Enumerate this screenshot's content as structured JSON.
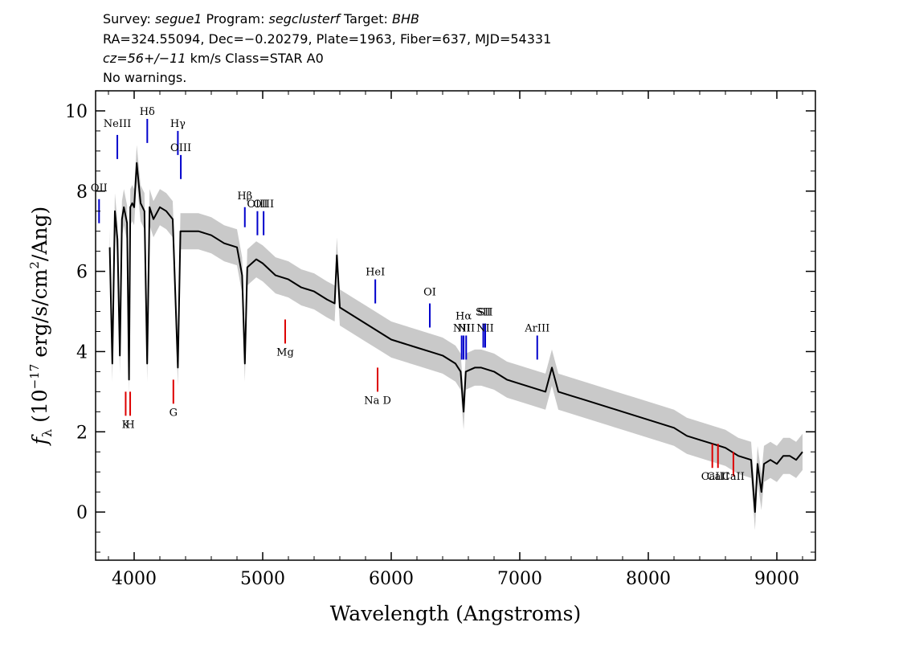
{
  "header": {
    "survey_label": "Survey: ",
    "survey": "segue1",
    "program_label": " Program: ",
    "program": "segclusterf",
    "target_label": " Target: ",
    "target": "BHB",
    "line2": "RA=324.55094, Dec=−0.20279, Plate=1963, Fiber=637, MJD=54331",
    "cz": "cz=56+/−11",
    "line3_rest": " km/s Class=STAR A0",
    "line4": "No warnings."
  },
  "chart_data": {
    "type": "line",
    "xlabel": "Wavelength (Angstroms)",
    "ylabel": "f_λ (10^-17 erg/s/cm^2/Ang)",
    "xlim": [
      3700,
      9300
    ],
    "ylim": [
      -1.2,
      10.5
    ],
    "xticks": [
      4000,
      5000,
      6000,
      7000,
      8000,
      9000
    ],
    "yticks": [
      0,
      2,
      4,
      6,
      8,
      10
    ],
    "colors": {
      "flux": "#000000",
      "error": "#c0c0c0",
      "emission": "#0000cc",
      "absorption": "#dd0000"
    },
    "series": [
      {
        "x": [
          3810,
          3830,
          3850,
          3870,
          3889,
          3905,
          3920,
          3945,
          3960,
          3970,
          3985,
          4000,
          4020,
          4050,
          4080,
          4101,
          4120,
          4150,
          4200,
          4250,
          4300,
          4340,
          4360,
          4400,
          4500,
          4600,
          4700,
          4800,
          4840,
          4861,
          4880,
          4950,
          5000,
          5100,
          5200,
          5300,
          5400,
          5500,
          5560,
          5577,
          5600,
          5700,
          5800,
          5900,
          6000,
          6100,
          6200,
          6300,
          6400,
          6500,
          6540,
          6563,
          6580,
          6650,
          6700,
          6800,
          6900,
          7000,
          7100,
          7200,
          7250,
          7300,
          7400,
          7500,
          7600,
          7700,
          7800,
          7900,
          8000,
          8100,
          8200,
          8300,
          8400,
          8500,
          8600,
          8700,
          8800,
          8830,
          8850,
          8880,
          8900,
          8950,
          9000,
          9050,
          9100,
          9150,
          9200
        ],
        "values": [
          6.6,
          3.7,
          7.5,
          6.8,
          3.9,
          7.3,
          7.6,
          7.2,
          3.3,
          7.6,
          7.7,
          7.6,
          8.7,
          7.7,
          7.5,
          3.7,
          7.6,
          7.3,
          7.6,
          7.5,
          7.3,
          3.6,
          7.0,
          7.0,
          7.0,
          6.9,
          6.7,
          6.6,
          5.9,
          3.7,
          6.1,
          6.3,
          6.2,
          5.9,
          5.8,
          5.6,
          5.5,
          5.3,
          5.2,
          6.4,
          5.1,
          4.9,
          4.7,
          4.5,
          4.3,
          4.2,
          4.1,
          4.0,
          3.9,
          3.7,
          3.5,
          2.5,
          3.5,
          3.6,
          3.6,
          3.5,
          3.3,
          3.2,
          3.1,
          3.0,
          3.6,
          3.0,
          2.9,
          2.8,
          2.7,
          2.6,
          2.5,
          2.4,
          2.3,
          2.2,
          2.1,
          1.9,
          1.8,
          1.7,
          1.6,
          1.4,
          1.3,
          0.0,
          1.2,
          0.5,
          1.2,
          1.3,
          1.2,
          1.4,
          1.4,
          1.3,
          1.5
        ]
      }
    ],
    "spectral_lines": [
      {
        "label": "NeIII",
        "wavelength": 3869,
        "type": "emission",
        "label_flux": 9.6,
        "marker": [
          8.8,
          9.4
        ]
      },
      {
        "label": "Hδ",
        "wavelength": 4102,
        "type": "emission",
        "label_flux": 9.9,
        "marker": [
          9.2,
          9.8
        ]
      },
      {
        "label": "Hγ",
        "wavelength": 4340,
        "type": "emission",
        "label_flux": 9.6,
        "marker": [
          8.9,
          9.5
        ]
      },
      {
        "label": "OIII",
        "wavelength": 4363,
        "type": "emission",
        "label_flux": 9.0,
        "marker": [
          8.3,
          8.9
        ]
      },
      {
        "label": "OII",
        "wavelength": 3727,
        "type": "emission",
        "label_flux": 8.0,
        "marker": [
          7.2,
          7.8
        ]
      },
      {
        "label": "Hβ",
        "wavelength": 4861,
        "type": "emission",
        "label_flux": 7.8,
        "marker": [
          7.1,
          7.6
        ]
      },
      {
        "label": "OIII",
        "wavelength": 4959,
        "type": "emission",
        "label_flux": 7.6,
        "marker": [
          6.9,
          7.5
        ]
      },
      {
        "label": "OIII",
        "wavelength": 5007,
        "type": "emission",
        "label_flux": 7.6,
        "marker": [
          6.9,
          7.5
        ]
      },
      {
        "label": "HeI",
        "wavelength": 5876,
        "type": "emission",
        "label_flux": 5.9,
        "marker": [
          5.2,
          5.8
        ]
      },
      {
        "label": "OI",
        "wavelength": 6300,
        "type": "emission",
        "label_flux": 5.4,
        "marker": [
          4.6,
          5.2
        ]
      },
      {
        "label": "NII",
        "wavelength": 6548,
        "type": "emission",
        "label_flux": 4.5,
        "marker": [
          3.8,
          4.4
        ]
      },
      {
        "label": "Hα",
        "wavelength": 6563,
        "type": "emission",
        "label_flux": 4.8,
        "marker": [
          3.8,
          4.4
        ]
      },
      {
        "label": "NII",
        "wavelength": 6583,
        "type": "emission",
        "label_flux": 4.5,
        "marker": [
          3.8,
          4.4
        ]
      },
      {
        "label": "SII",
        "wavelength": 6716,
        "type": "emission",
        "label_flux": 4.9,
        "marker": [
          4.1,
          4.7
        ]
      },
      {
        "label": "SII",
        "wavelength": 6731,
        "type": "emission",
        "label_flux": 4.9,
        "marker": [
          4.1,
          4.7
        ]
      },
      {
        "label": "NII",
        "wavelength": 6731,
        "type": "emission",
        "label_flux": 4.5,
        "marker": [
          4.1,
          4.7
        ]
      },
      {
        "label": "ArIII",
        "wavelength": 7136,
        "type": "emission",
        "label_flux": 4.5,
        "marker": [
          3.8,
          4.4
        ]
      },
      {
        "label": "K",
        "wavelength": 3934,
        "type": "absorption",
        "label_flux": 2.1,
        "marker": [
          2.4,
          3.0
        ]
      },
      {
        "label": "H",
        "wavelength": 3969,
        "type": "absorption",
        "label_flux": 2.1,
        "marker": [
          2.4,
          3.0
        ]
      },
      {
        "label": "G",
        "wavelength": 4305,
        "type": "absorption",
        "label_flux": 2.4,
        "marker": [
          2.7,
          3.3
        ]
      },
      {
        "label": "Mg",
        "wavelength": 5175,
        "type": "absorption",
        "label_flux": 3.9,
        "marker": [
          4.2,
          4.8
        ]
      },
      {
        "label": "Na D",
        "wavelength": 5894,
        "type": "absorption",
        "label_flux": 2.7,
        "marker": [
          3.0,
          3.6
        ]
      },
      {
        "label": "CaII",
        "wavelength": 8498,
        "type": "absorption",
        "label_flux": 0.8,
        "marker": [
          1.1,
          1.7
        ]
      },
      {
        "label": "CaII",
        "wavelength": 8542,
        "type": "absorption",
        "label_flux": 0.8,
        "marker": [
          1.1,
          1.7
        ]
      },
      {
        "label": "CaII",
        "wavelength": 8662,
        "type": "absorption",
        "label_flux": 0.8,
        "marker": [
          0.9,
          1.5
        ]
      }
    ]
  }
}
